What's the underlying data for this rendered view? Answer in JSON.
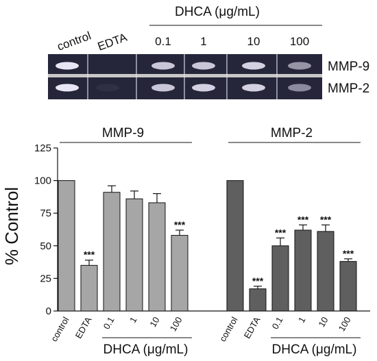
{
  "gel": {
    "header": "DHCA (μg/mL)",
    "lane_labels": [
      "control",
      "EDTA",
      "0.1",
      "1",
      "10",
      "100"
    ],
    "rows": [
      {
        "label": "MMP-9",
        "intensity": [
          0.95,
          0.0,
          0.8,
          0.8,
          0.85,
          0.55
        ]
      },
      {
        "label": "MMP-2",
        "intensity": [
          0.95,
          0.05,
          0.8,
          0.85,
          0.85,
          0.5
        ]
      }
    ],
    "colors": {
      "background": "#26263a",
      "band": "#f2f0ff",
      "divider": "#c8c8c8"
    }
  },
  "chart_data": {
    "type": "bar",
    "ylabel": "% Control",
    "ylim": [
      0,
      125
    ],
    "yticks": [
      0,
      25,
      50,
      75,
      100,
      125
    ],
    "categories": [
      "control",
      "EDTA",
      "0.1",
      "1",
      "10",
      "100"
    ],
    "xgroup_label": "DHCA (μg/mL)",
    "series": [
      {
        "name": "MMP-9",
        "color": "#a6a6a6",
        "values": [
          100,
          35,
          91,
          86,
          83,
          58
        ],
        "errors": [
          0,
          4,
          5,
          6,
          7,
          4
        ],
        "significance": [
          "",
          "***",
          "",
          "",
          "",
          "***"
        ]
      },
      {
        "name": "MMP-2",
        "color": "#5f5f5f",
        "values": [
          100,
          17,
          50,
          62,
          61,
          38
        ],
        "errors": [
          0,
          2,
          6,
          4,
          5,
          2
        ],
        "significance": [
          "",
          "***",
          "***",
          "***",
          "***",
          "***"
        ]
      }
    ]
  }
}
